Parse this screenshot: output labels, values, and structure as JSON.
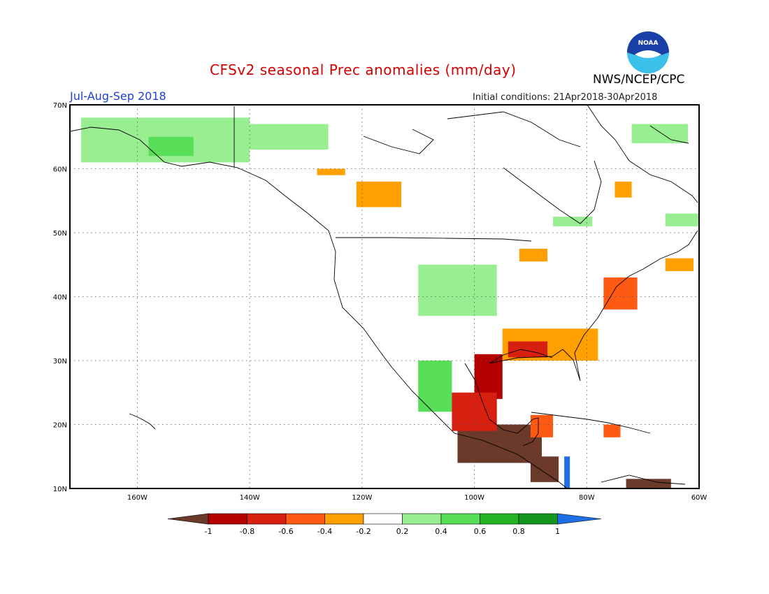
{
  "title": "CFSv2 seasonal Prec anomalies (mm/day)",
  "period": "Jul-Aug-Sep 2018",
  "initial_conditions": "Initial conditions: 21Apr2018-30Apr2018",
  "agency": "NWS/NCEP/CPC",
  "logo_text": "NOAA",
  "map": {
    "lon_range": [
      -172,
      -60
    ],
    "lat_range": [
      10,
      70
    ],
    "lon_ticks": [
      "160W",
      "140W",
      "120W",
      "100W",
      "80W",
      "60W"
    ],
    "lat_ticks": [
      "10N",
      "20N",
      "30N",
      "40N",
      "50N",
      "60N",
      "70N"
    ],
    "grid": "dotted"
  },
  "legend": {
    "labels": [
      "-1",
      "-0.8",
      "-0.6",
      "-0.4",
      "-0.2",
      "0.2",
      "0.4",
      "0.6",
      "0.8",
      "1"
    ],
    "colors": [
      "#6b3a2a",
      "#b40000",
      "#d82010",
      "#ff5a14",
      "#ffa000",
      "#ffffff",
      "#98ee90",
      "#58de58",
      "#22b422",
      "#14961e",
      "#1e6ee6"
    ]
  },
  "anomaly_regions": [
    {
      "name": "alaska",
      "color": "#98ee90",
      "lon": [
        -170,
        -140
      ],
      "lat": [
        61,
        68
      ]
    },
    {
      "name": "alaska-core",
      "color": "#58de58",
      "lon": [
        -158,
        -150
      ],
      "lat": [
        62,
        65
      ]
    },
    {
      "name": "yukon",
      "color": "#98ee90",
      "lon": [
        -145,
        -126
      ],
      "lat": [
        63,
        67
      ]
    },
    {
      "name": "canada-west",
      "color": "#ffa000",
      "lon": [
        -121,
        -113
      ],
      "lat": [
        54,
        58
      ]
    },
    {
      "name": "canada-west-2",
      "color": "#ffa000",
      "lon": [
        -128,
        -123
      ],
      "lat": [
        59,
        60
      ]
    },
    {
      "name": "hudson-east",
      "color": "#98ee90",
      "lon": [
        -86,
        -79
      ],
      "lat": [
        51,
        52.5
      ]
    },
    {
      "name": "quebec",
      "color": "#ffa000",
      "lon": [
        -75,
        -72
      ],
      "lat": [
        55.5,
        58
      ]
    },
    {
      "name": "baffin",
      "color": "#98ee90",
      "lon": [
        -72,
        -62
      ],
      "lat": [
        64,
        67
      ]
    },
    {
      "name": "labrador",
      "color": "#98ee90",
      "lon": [
        -66,
        -60
      ],
      "lat": [
        51,
        53
      ]
    },
    {
      "name": "great-plains",
      "color": "#98ee90",
      "lon": [
        -110,
        -96
      ],
      "lat": [
        37,
        45
      ]
    },
    {
      "name": "upper-midwest",
      "color": "#ffa000",
      "lon": [
        -92,
        -87
      ],
      "lat": [
        45.5,
        47.5
      ]
    },
    {
      "name": "gulf-coast",
      "color": "#ffa000",
      "lon": [
        -95,
        -78
      ],
      "lat": [
        30,
        35
      ]
    },
    {
      "name": "gulf-coast-red",
      "color": "#d82010",
      "lon": [
        -94,
        -87
      ],
      "lat": [
        30.5,
        33
      ]
    },
    {
      "name": "mid-atlantic",
      "color": "#ff5a14",
      "lon": [
        -77,
        -71
      ],
      "lat": [
        38,
        43
      ]
    },
    {
      "name": "nova-scotia",
      "color": "#ffa000",
      "lon": [
        -66,
        -61
      ],
      "lat": [
        44,
        46
      ]
    },
    {
      "name": "mexico-west",
      "color": "#58de58",
      "lon": [
        -110,
        -104
      ],
      "lat": [
        22,
        30
      ]
    },
    {
      "name": "texas",
      "color": "#b40000",
      "lon": [
        -100,
        -95
      ],
      "lat": [
        24,
        31
      ]
    },
    {
      "name": "mexico-south",
      "color": "#6b3a2a",
      "lon": [
        -103,
        -88
      ],
      "lat": [
        14,
        20
      ]
    },
    {
      "name": "mexico-south-red",
      "color": "#d82010",
      "lon": [
        -104,
        -96
      ],
      "lat": [
        19,
        25
      ]
    },
    {
      "name": "yucatan",
      "color": "#ff5a14",
      "lon": [
        -90,
        -86
      ],
      "lat": [
        18,
        21.5
      ]
    },
    {
      "name": "central-america",
      "color": "#6b3a2a",
      "lon": [
        -90,
        -85
      ],
      "lat": [
        11,
        15
      ]
    },
    {
      "name": "cuba-east",
      "color": "#ff5a14",
      "lon": [
        -77,
        -74
      ],
      "lat": [
        18,
        20
      ]
    },
    {
      "name": "venezuela",
      "color": "#6b3a2a",
      "lon": [
        -73,
        -65
      ],
      "lat": [
        10,
        11.5
      ]
    },
    {
      "name": "panama-blue",
      "color": "#1e6ee6",
      "lon": [
        -84,
        -83
      ],
      "lat": [
        10,
        15
      ]
    }
  ]
}
